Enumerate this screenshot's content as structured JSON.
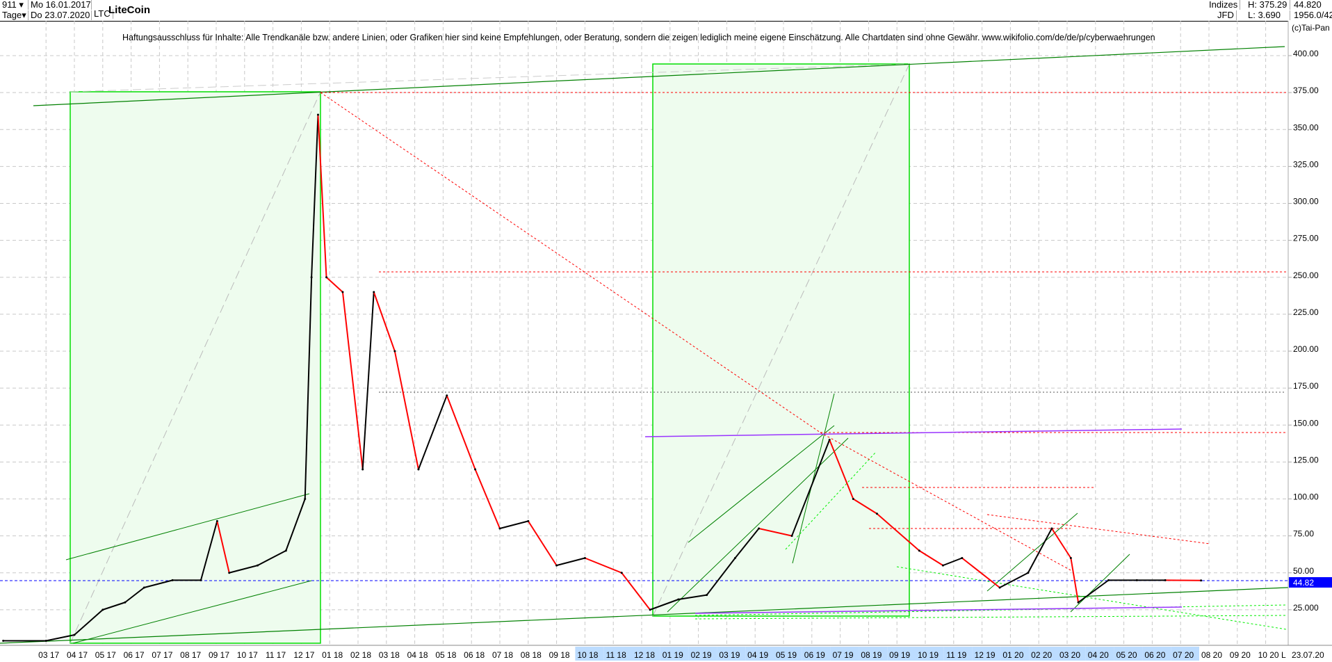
{
  "header": {
    "count_select": "911",
    "period_select": "Tage",
    "start_date": "Mo 16.01.2017",
    "end_date": "Do 23.07.2020",
    "symbol": "LTC",
    "title": "LiteCoin",
    "market": "Indizes",
    "source": "JFD",
    "high": "H: 375.29",
    "low": "L: 3.690",
    "last": "44.820",
    "info": "1956.0/42",
    "copyright": "(c)Tai-Pan"
  },
  "disclaimer": "Haftungsausschluss für Inhalte: Alle Trendkanäle bzw. andere Linien, oder Grafiken hier sind keine Empfehlungen, oder Beratung, sondern die zeigen lediglich meine eigene Einschätzung. Alle Chartdaten sind ohne Gewähr.  www.wikifolio.com/de/de/p/cyberwaehrungen",
  "colors": {
    "up": "#000000",
    "down": "#ff0000",
    "current_price": "#0000ff",
    "box_fill": "#eefcee",
    "box_border": "#00dd00",
    "trendline": "#008000",
    "resistance": "#ff0000",
    "purple": "#9933ff"
  },
  "chart_data": {
    "type": "line",
    "title": "LiteCoin",
    "ylim": [
      0,
      410
    ],
    "y_ticks": [
      "25.000",
      "50.00",
      "75.00",
      "100.00",
      "125.00",
      "150.00",
      "175.00",
      "200.00",
      "225.00",
      "250.00",
      "275.00",
      "300.00",
      "325.00",
      "350.00",
      "375.00",
      "400.00"
    ],
    "x_ticks": [
      "03 17",
      "04 17",
      "05 17",
      "06 17",
      "07 17",
      "08 17",
      "09 17",
      "10 17",
      "11 17",
      "12 17",
      "01 18",
      "02 18",
      "03 18",
      "04 18",
      "05 18",
      "06 18",
      "07 18",
      "08 18",
      "09 18",
      "10 18",
      "11 18",
      "12 18",
      "01 19",
      "02 19",
      "03 19",
      "04 19",
      "05 19",
      "06 19",
      "07 19",
      "08 19",
      "09 19",
      "10 19",
      "11 19",
      "12 19",
      "01 20",
      "02 20",
      "03 20",
      "04 20",
      "05 20",
      "06 20",
      "07 20",
      "08 20",
      "09 20",
      "10 20"
    ],
    "x_end_label": "L",
    "last_date": "23.07.20",
    "grid": true,
    "current_price": 44.82,
    "horizontal_levels": [
      375,
      254,
      172,
      145,
      108,
      44.82
    ],
    "series": [
      {
        "x": [
          "2017-01-16",
          "2017-03-01",
          "2017-04-01",
          "2017-05-01",
          "2017-05-25",
          "2017-06-15",
          "2017-07-15",
          "2017-08-15",
          "2017-09-02",
          "2017-09-15",
          "2017-10-15",
          "2017-11-15",
          "2017-12-05",
          "2017-12-12",
          "2017-12-19",
          "2017-12-28",
          "2018-01-15",
          "2018-02-06",
          "2018-02-18",
          "2018-03-10",
          "2018-04-05",
          "2018-05-05",
          "2018-06-05",
          "2018-07-01",
          "2018-08-01",
          "2018-09-01",
          "2018-10-01",
          "2018-11-10",
          "2018-12-10",
          "2019-01-10",
          "2019-02-10",
          "2019-03-10",
          "2019-04-05",
          "2019-05-10",
          "2019-06-20",
          "2019-07-15",
          "2019-08-10",
          "2019-09-25",
          "2019-10-20",
          "2019-11-10",
          "2019-12-20",
          "2020-01-20",
          "2020-02-15",
          "2020-03-05",
          "2020-03-13",
          "2020-04-15",
          "2020-05-15",
          "2020-06-15",
          "2020-07-23"
        ],
        "y": [
          4,
          4,
          8,
          25,
          30,
          40,
          45,
          45,
          85,
          50,
          55,
          65,
          100,
          250,
          360,
          250,
          240,
          120,
          240,
          200,
          120,
          170,
          120,
          80,
          85,
          55,
          60,
          50,
          25,
          32,
          35,
          60,
          80,
          75,
          140,
          100,
          90,
          65,
          55,
          60,
          40,
          50,
          80,
          60,
          30,
          45,
          45,
          45,
          44.82
        ]
      }
    ]
  }
}
